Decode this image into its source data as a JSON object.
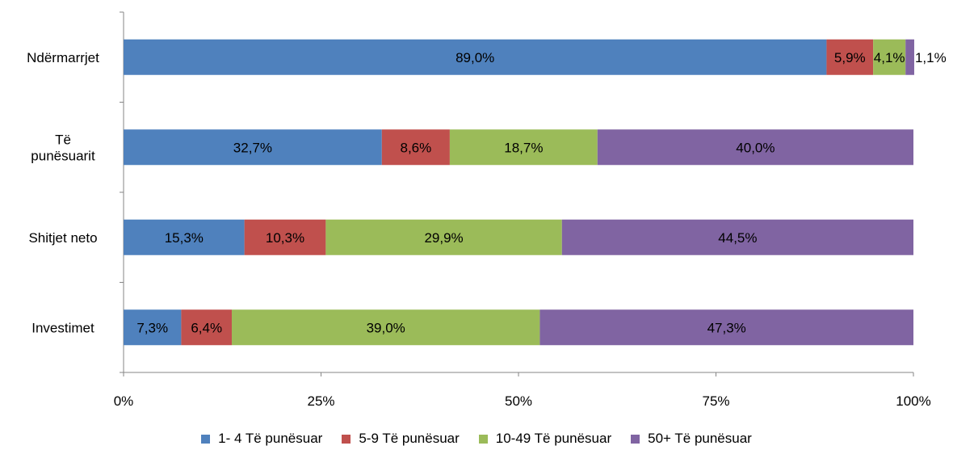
{
  "chart_data": {
    "type": "bar",
    "orientation": "horizontal",
    "stacked": true,
    "categories": [
      "Ndërmarrjet",
      "Të punësuarit",
      "Shitjet neto",
      "Investimet"
    ],
    "category_label_lines": [
      [
        "Ndërmarrjet"
      ],
      [
        "Të",
        "punësuarit"
      ],
      [
        "Shitjet neto"
      ],
      [
        "Investimet"
      ]
    ],
    "series": [
      {
        "name": "1- 4 Të punësuar",
        "color": "#4f81bd",
        "values": [
          89.0,
          32.7,
          15.3,
          7.3
        ],
        "labels": [
          "89,0%",
          "32,7%",
          "15,3%",
          "7,3%"
        ]
      },
      {
        "name": "5-9 Të punësuar",
        "color": "#c0504d",
        "values": [
          5.9,
          8.6,
          10.3,
          6.4
        ],
        "labels": [
          "5,9%",
          "8,6%",
          "10,3%",
          "6,4%"
        ]
      },
      {
        "name": "10-49 Të punësuar",
        "color": "#9bbb59",
        "values": [
          4.1,
          18.7,
          29.9,
          39.0
        ],
        "labels": [
          "4,1%",
          "18,7%",
          "29,9%",
          "39,0%"
        ]
      },
      {
        "name": "50+ Të punësuar",
        "color": "#8064a2",
        "values": [
          1.1,
          40.0,
          44.5,
          47.3
        ],
        "labels": [
          "1,1%",
          "40,0%",
          "44,5%",
          "47,3%"
        ]
      }
    ],
    "xlim": [
      0,
      100
    ],
    "xticks": [
      0,
      25,
      50,
      75,
      100
    ],
    "xtick_labels": [
      "0%",
      "25%",
      "50%",
      "75%",
      "100%"
    ],
    "xlabel": "",
    "ylabel": "",
    "grid": false,
    "legend_position": "bottom"
  }
}
